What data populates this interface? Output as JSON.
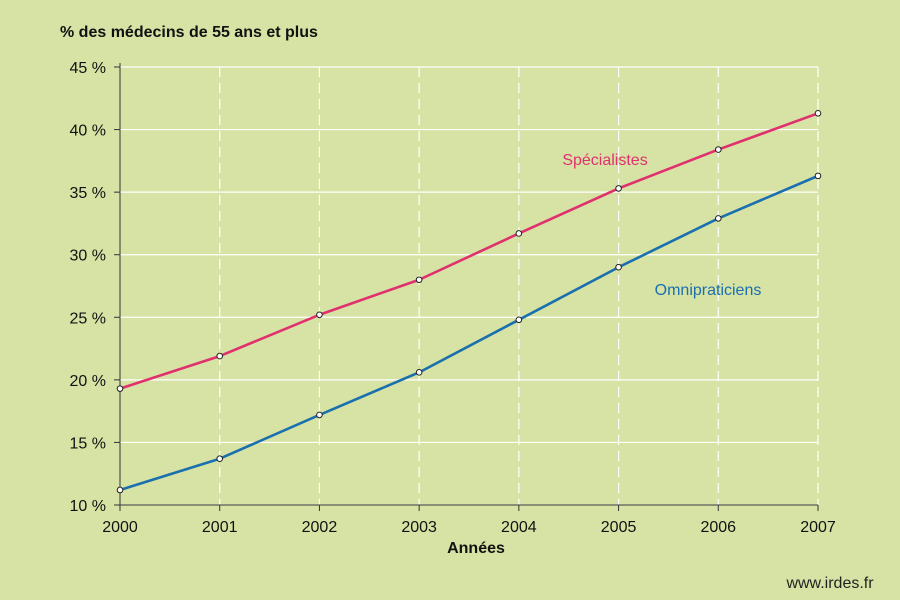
{
  "chart_data": {
    "type": "line",
    "title": "% des médecins de 55 ans et plus",
    "xlabel": "Années",
    "ylabel": "",
    "x": [
      2000,
      2001,
      2002,
      2003,
      2004,
      2005,
      2006,
      2007
    ],
    "ylim": [
      10,
      45
    ],
    "yticks": [
      10,
      15,
      20,
      25,
      30,
      35,
      40,
      45
    ],
    "ytick_labels": [
      "10 %",
      "15 %",
      "20 %",
      "25 %",
      "30 %",
      "35 %",
      "40 %",
      "45 %"
    ],
    "xtick_labels": [
      "2000",
      "2001",
      "2002",
      "2003",
      "2004",
      "2005",
      "2006",
      "2007"
    ],
    "grid": {
      "horizontal": true,
      "vertical": "dashed"
    },
    "legend": "inline labels",
    "series": [
      {
        "name": "Spécialistes",
        "color": "#e0306e",
        "values": [
          19.3,
          21.9,
          25.2,
          28.0,
          31.7,
          35.3,
          38.4,
          41.3
        ]
      },
      {
        "name": "Omnipraticiens",
        "color": "#1a6faf",
        "values": [
          11.2,
          13.7,
          17.2,
          20.6,
          24.8,
          29.0,
          32.9,
          36.3
        ]
      }
    ]
  },
  "footer": {
    "source": "www.irdes.fr"
  }
}
